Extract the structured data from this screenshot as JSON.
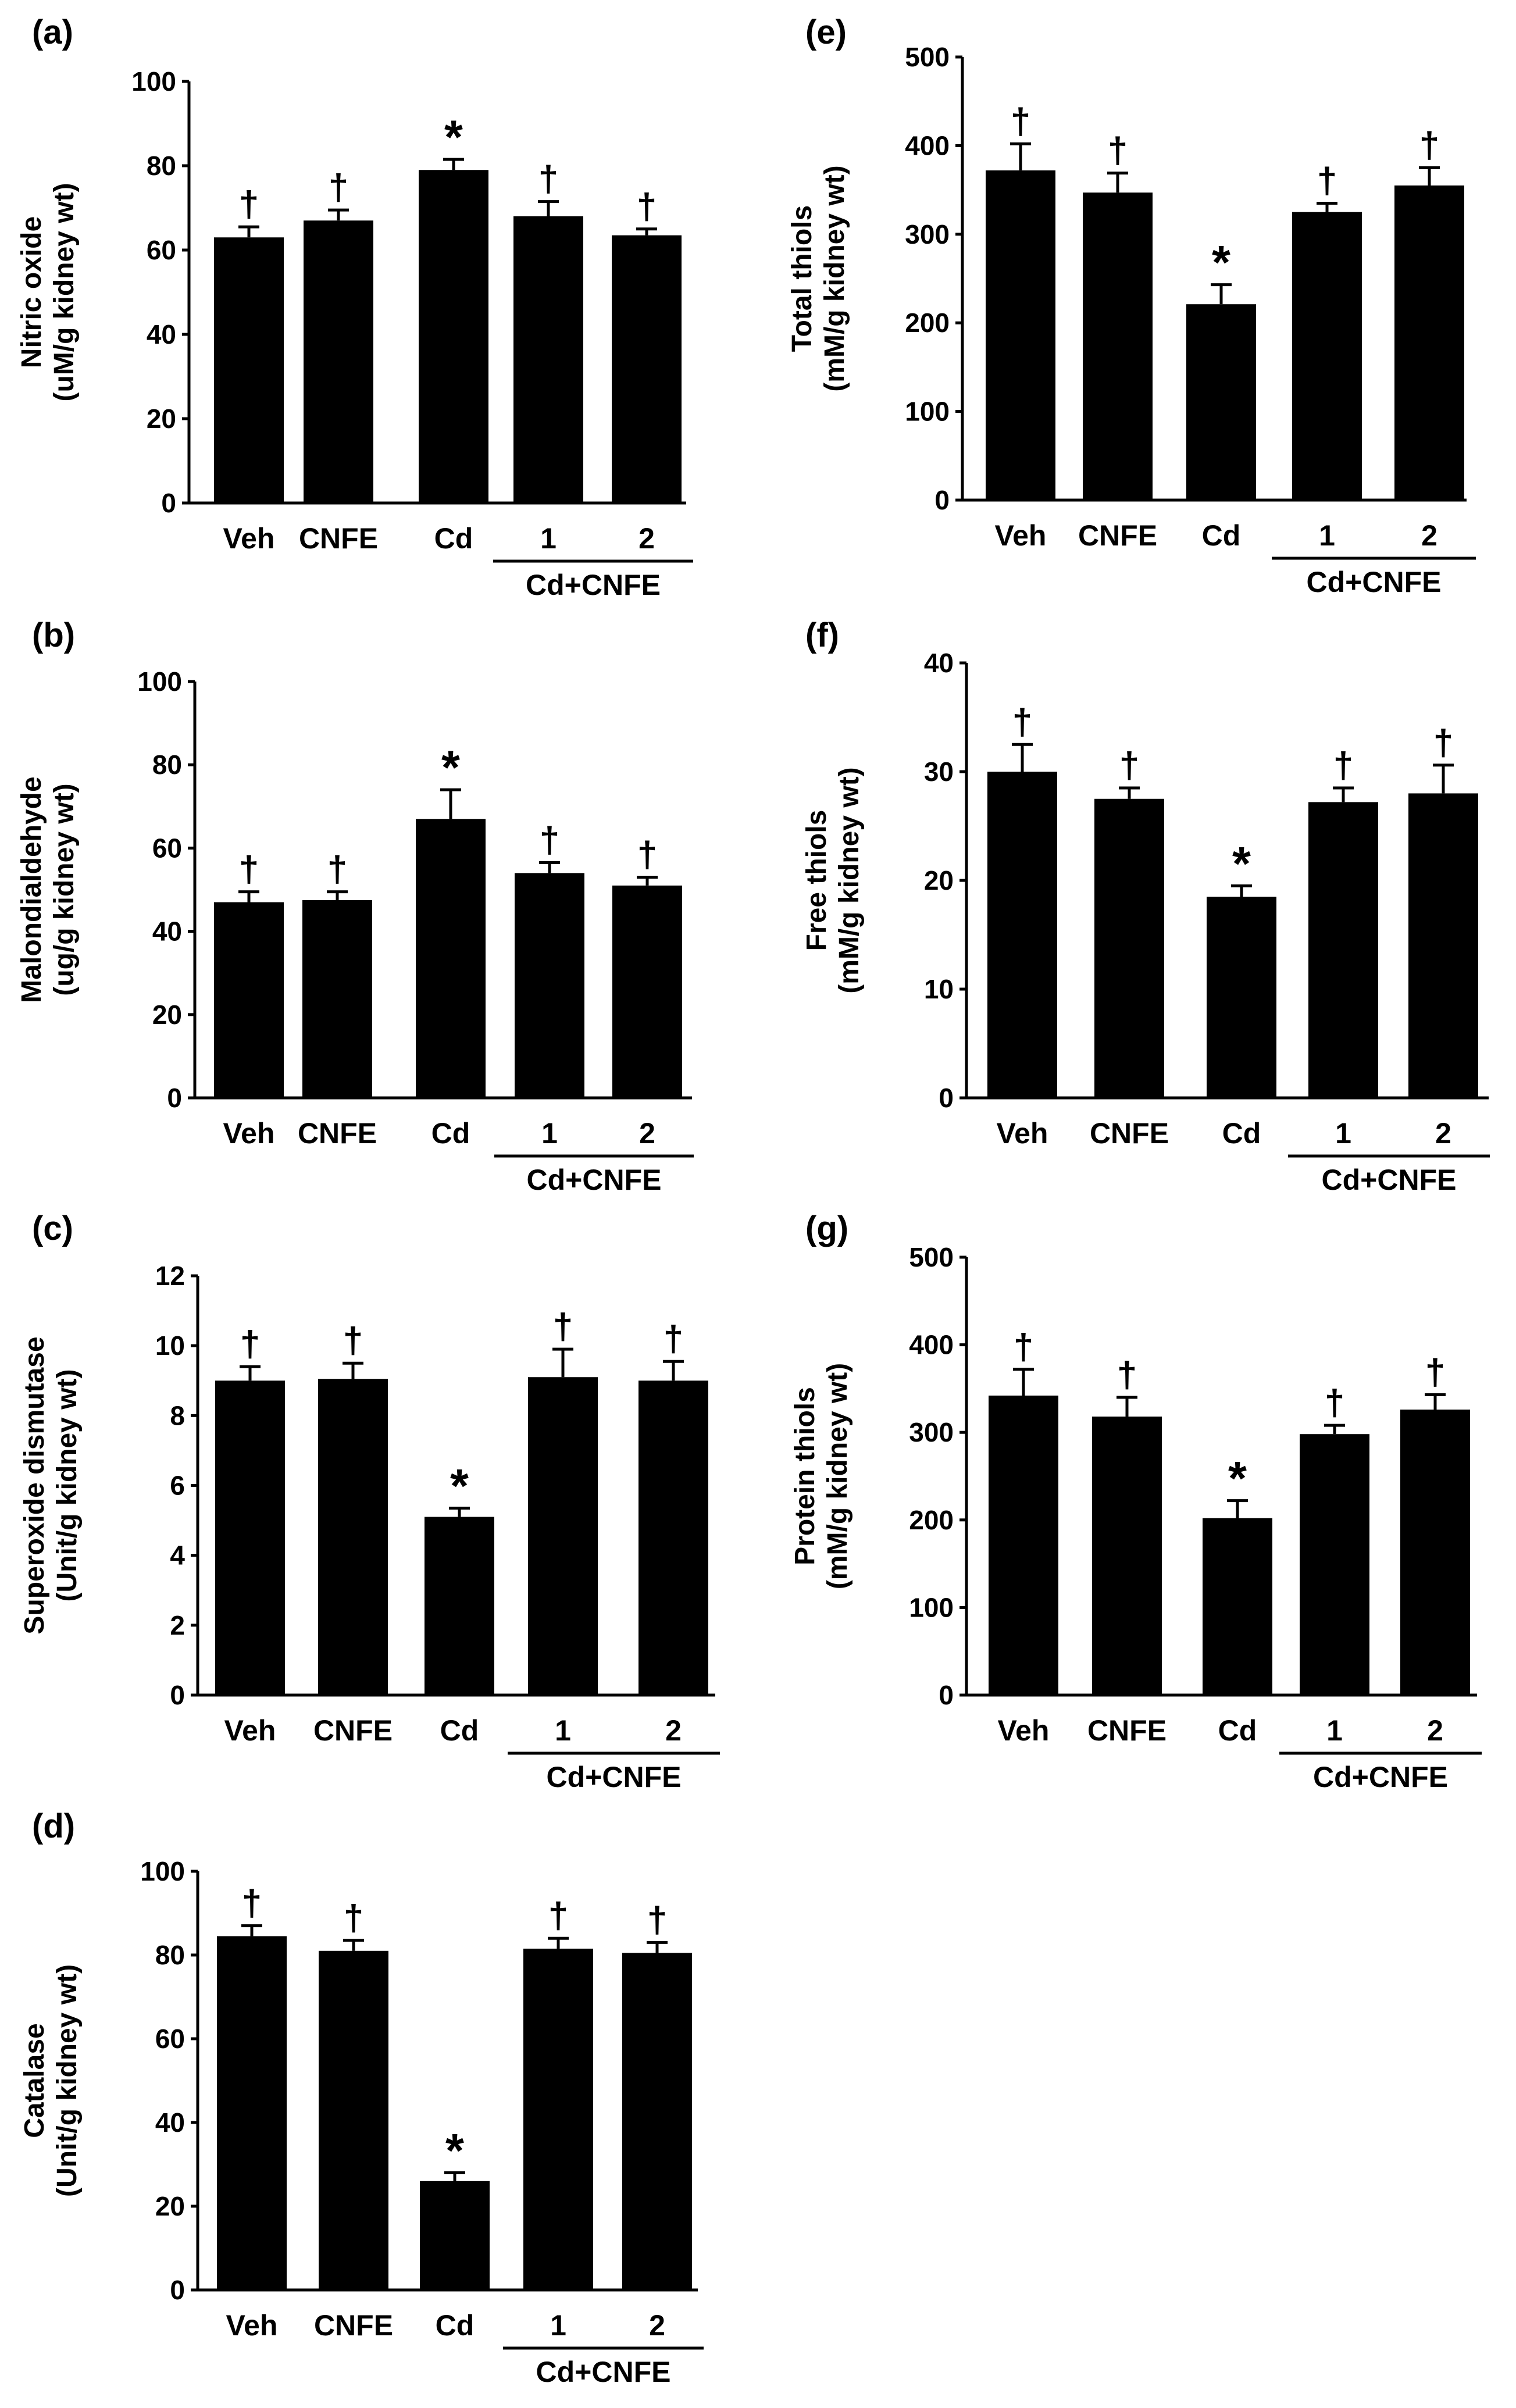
{
  "chart_data": [
    {
      "panel": "(a)",
      "type": "bar",
      "ylabel_line1": "Nitric oxide",
      "ylabel_line2": "(uM/g kidney wt)",
      "ylim": [
        0,
        100
      ],
      "yticks": [
        0,
        20,
        40,
        60,
        80,
        100
      ],
      "categories": [
        "Veh",
        "CNFE",
        "Cd",
        "1",
        "2"
      ],
      "group_label": "Cd+CNFE",
      "values": [
        63,
        67,
        79,
        68,
        63.5
      ],
      "errors": [
        2.5,
        2.5,
        2.5,
        3.5,
        1.5
      ],
      "markers": [
        "†",
        "†",
        "*",
        "†",
        "†"
      ]
    },
    {
      "panel": "(b)",
      "type": "bar",
      "ylabel_line1": "Malondialdehyde",
      "ylabel_line2": "(ug/g kidney wt)",
      "ylim": [
        0,
        100
      ],
      "yticks": [
        0,
        20,
        40,
        60,
        80,
        100
      ],
      "categories": [
        "Veh",
        "CNFE",
        "Cd",
        "1",
        "2"
      ],
      "group_label": "Cd+CNFE",
      "values": [
        47,
        47.5,
        67,
        54,
        51
      ],
      "errors": [
        2.5,
        2,
        7,
        2.5,
        2
      ],
      "markers": [
        "†",
        "†",
        "*",
        "†",
        "†"
      ]
    },
    {
      "panel": "(c)",
      "type": "bar",
      "ylabel_line1": "Superoxide dismutase",
      "ylabel_line2": "(Unit/g kidney wt)",
      "ylim": [
        0,
        12
      ],
      "yticks": [
        0,
        2,
        4,
        6,
        8,
        10,
        12
      ],
      "categories": [
        "Veh",
        "CNFE",
        "Cd",
        "1",
        "2"
      ],
      "group_label": "Cd+CNFE",
      "values": [
        9.0,
        9.05,
        5.1,
        9.1,
        9.0
      ],
      "errors": [
        0.4,
        0.45,
        0.25,
        0.8,
        0.55
      ],
      "markers": [
        "†",
        "†",
        "*",
        "†",
        "†"
      ]
    },
    {
      "panel": "(d)",
      "type": "bar",
      "ylabel_line1": "Catalase",
      "ylabel_line2": "(Unit/g kidney wt)",
      "ylim": [
        0,
        100
      ],
      "yticks": [
        0,
        20,
        40,
        60,
        80,
        100
      ],
      "categories": [
        "Veh",
        "CNFE",
        "Cd",
        "1",
        "2"
      ],
      "group_label": "Cd+CNFE",
      "values": [
        84.5,
        81,
        26,
        81.5,
        80.5
      ],
      "errors": [
        2.5,
        2.5,
        2,
        2.5,
        2.5
      ],
      "markers": [
        "†",
        "†",
        "*",
        "†",
        "†"
      ]
    },
    {
      "panel": "(e)",
      "type": "bar",
      "ylabel_line1": "Total thiols",
      "ylabel_line2": "(mM/g kidney wt)",
      "ylim": [
        0,
        500
      ],
      "yticks": [
        0,
        100,
        200,
        300,
        400,
        500
      ],
      "categories": [
        "Veh",
        "CNFE",
        "Cd",
        "1",
        "2"
      ],
      "group_label": "Cd+CNFE",
      "values": [
        372,
        347,
        221,
        325,
        355
      ],
      "errors": [
        30,
        22,
        22,
        10,
        20
      ],
      "markers": [
        "†",
        "†",
        "*",
        "†",
        "†"
      ]
    },
    {
      "panel": "(f)",
      "type": "bar",
      "ylabel_line1": "Free thiols",
      "ylabel_line2": "(mM/g kidney wt)",
      "ylim": [
        0,
        40
      ],
      "yticks": [
        0,
        10,
        20,
        30,
        40
      ],
      "categories": [
        "Veh",
        "CNFE",
        "Cd",
        "1",
        "2"
      ],
      "group_label": "Cd+CNFE",
      "values": [
        30,
        27.5,
        18.5,
        27.2,
        28
      ],
      "errors": [
        2.5,
        1,
        1,
        1.3,
        2.6
      ],
      "markers": [
        "†",
        "†",
        "*",
        "†",
        "†"
      ]
    },
    {
      "panel": "(g)",
      "type": "bar",
      "ylabel_line1": "Protein thiols",
      "ylabel_line2": "(mM/g kidney wt)",
      "ylim": [
        0,
        500
      ],
      "yticks": [
        0,
        100,
        200,
        300,
        400,
        500
      ],
      "categories": [
        "Veh",
        "CNFE",
        "Cd",
        "1",
        "2"
      ],
      "group_label": "Cd+CNFE",
      "values": [
        342,
        318,
        202,
        298,
        326
      ],
      "errors": [
        30,
        22,
        20,
        10,
        17
      ],
      "markers": [
        "†",
        "†",
        "*",
        "†",
        "†"
      ]
    }
  ]
}
